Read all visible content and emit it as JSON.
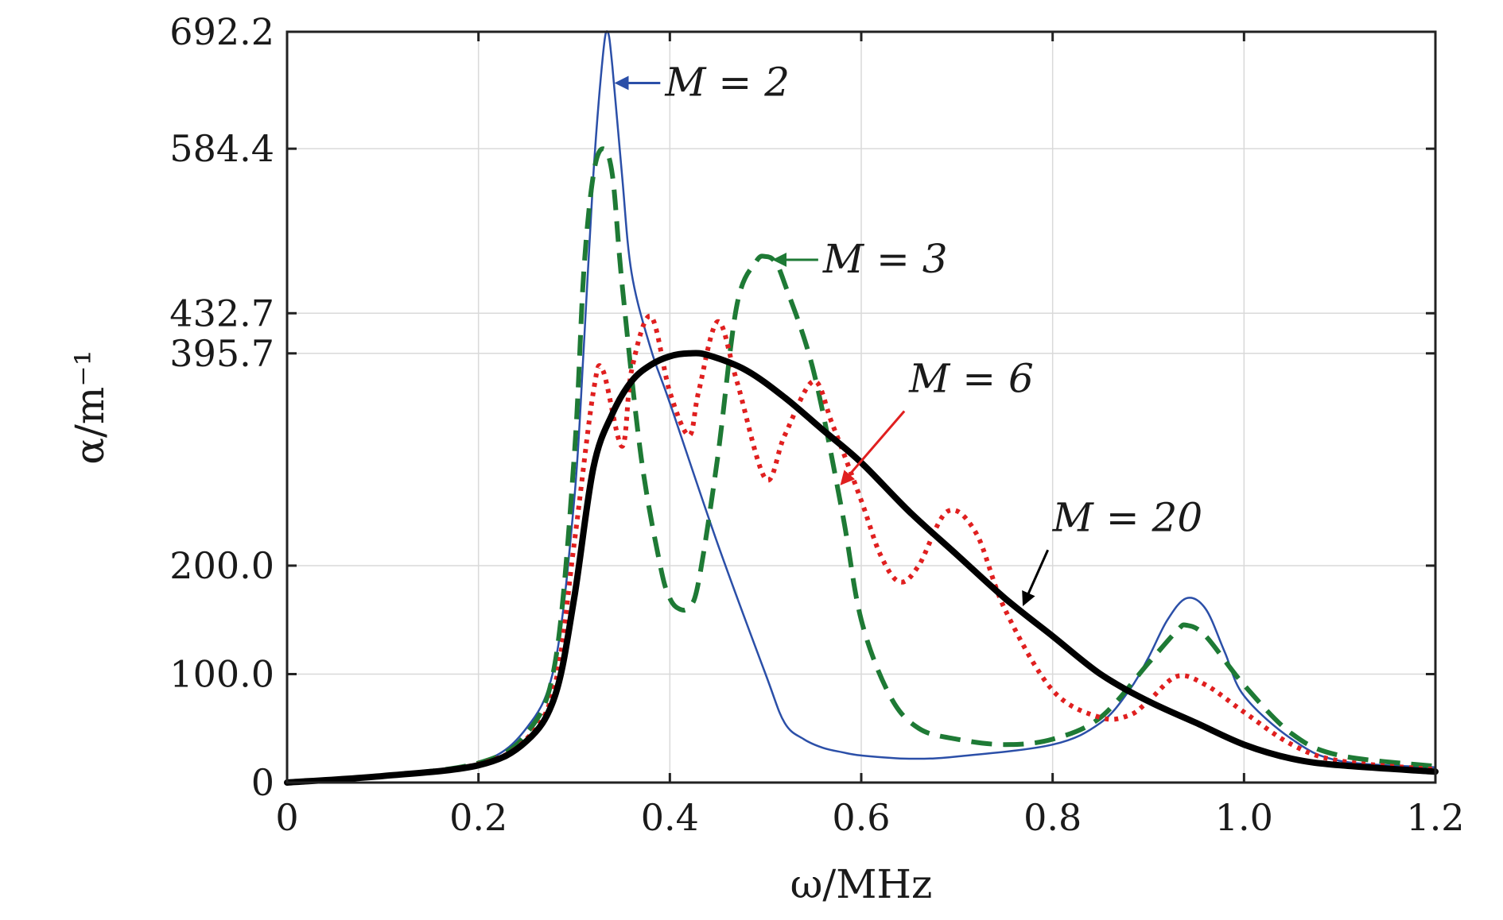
{
  "chart_data": {
    "type": "line",
    "xlabel": "ω/MHz",
    "ylabel": "α/m⁻¹",
    "xlim": [
      0,
      1.2
    ],
    "ylim": [
      0,
      692.2
    ],
    "grid": true,
    "x_ticks": [
      0,
      0.2,
      0.4,
      0.6,
      0.8,
      1.0,
      1.2
    ],
    "x_tick_labels": [
      "0",
      "0.2",
      "0.4",
      "0.6",
      "0.8",
      "1.0",
      "1.2"
    ],
    "y_ticks": [
      0,
      100,
      200,
      395.7,
      432.7,
      584.4,
      692.2
    ],
    "y_tick_labels": [
      "0",
      "100.0",
      "200.0",
      "395.7",
      "432.7",
      "584.4",
      "692.2"
    ],
    "series": [
      {
        "name": "M = 2",
        "color": "#2b4fa8",
        "style": "solid-thin",
        "x": [
          0,
          0.1,
          0.2,
          0.25,
          0.28,
          0.3,
          0.31,
          0.32,
          0.33,
          0.335,
          0.34,
          0.35,
          0.36,
          0.38,
          0.4,
          0.45,
          0.5,
          0.52,
          0.54,
          0.56,
          0.58,
          0.6,
          0.65,
          0.7,
          0.8,
          0.85,
          0.88,
          0.9,
          0.92,
          0.94,
          0.96,
          0.98,
          1.0,
          1.05,
          1.1,
          1.2
        ],
        "y": [
          0,
          6,
          18,
          50,
          110,
          260,
          400,
          560,
          670,
          692.2,
          660,
          560,
          470,
          400,
          350,
          220,
          100,
          55,
          40,
          32,
          28,
          25,
          22,
          24,
          35,
          55,
          85,
          115,
          150,
          170,
          160,
          120,
          80,
          40,
          20,
          14
        ]
      },
      {
        "name": "M = 3",
        "color": "#1e7a35",
        "style": "dashed",
        "x": [
          0,
          0.1,
          0.2,
          0.25,
          0.28,
          0.3,
          0.31,
          0.32,
          0.33,
          0.34,
          0.35,
          0.37,
          0.39,
          0.4,
          0.41,
          0.42,
          0.43,
          0.45,
          0.47,
          0.49,
          0.5,
          0.51,
          0.52,
          0.55,
          0.58,
          0.6,
          0.63,
          0.66,
          0.7,
          0.75,
          0.8,
          0.85,
          0.9,
          0.93,
          0.94,
          0.96,
          1.0,
          1.05,
          1.1,
          1.2
        ],
        "y": [
          0,
          6,
          18,
          45,
          110,
          300,
          470,
          560,
          584.4,
          560,
          460,
          300,
          200,
          170,
          160,
          162,
          185,
          300,
          440,
          480,
          485,
          480,
          460,
          380,
          250,
          150,
          80,
          50,
          40,
          35,
          40,
          60,
          110,
          140,
          145,
          135,
          90,
          45,
          25,
          15
        ]
      },
      {
        "name": "M = 6",
        "color": "#e01f1f",
        "style": "dotted",
        "x": [
          0,
          0.1,
          0.2,
          0.25,
          0.28,
          0.3,
          0.32,
          0.33,
          0.35,
          0.36,
          0.38,
          0.4,
          0.42,
          0.43,
          0.45,
          0.47,
          0.5,
          0.52,
          0.55,
          0.57,
          0.6,
          0.62,
          0.64,
          0.66,
          0.69,
          0.72,
          0.75,
          0.8,
          0.85,
          0.88,
          0.9,
          0.93,
          0.96,
          1.0,
          1.05,
          1.1,
          1.2
        ],
        "y": [
          0,
          6,
          17,
          40,
          90,
          220,
          360,
          380,
          310,
          380,
          430,
          360,
          320,
          360,
          425,
          370,
          280,
          320,
          370,
          330,
          260,
          210,
          185,
          200,
          250,
          230,
          160,
          85,
          60,
          62,
          75,
          98,
          90,
          65,
          35,
          20,
          12
        ]
      },
      {
        "name": "M = 20",
        "color": "#000000",
        "style": "solid-thick",
        "x": [
          0,
          0.1,
          0.2,
          0.25,
          0.28,
          0.3,
          0.32,
          0.34,
          0.36,
          0.38,
          0.4,
          0.42,
          0.44,
          0.48,
          0.52,
          0.56,
          0.6,
          0.65,
          0.7,
          0.75,
          0.8,
          0.85,
          0.9,
          0.95,
          1.0,
          1.05,
          1.1,
          1.2
        ],
        "y": [
          0,
          6,
          16,
          38,
          80,
          170,
          290,
          340,
          370,
          385,
          393,
          395.7,
          394,
          380,
          355,
          325,
          295,
          250,
          210,
          170,
          135,
          100,
          75,
          55,
          35,
          22,
          16,
          10
        ]
      }
    ],
    "annotations": [
      {
        "text": "M = 2",
        "color": "#2b4fa8",
        "target_x": 0.345,
        "target_y": 645,
        "label_x": 0.395,
        "label_y": 645
      },
      {
        "text": "M = 3",
        "color": "#1e7a35",
        "target_x": 0.51,
        "target_y": 482,
        "label_x": 0.56,
        "label_y": 482
      },
      {
        "text": "M = 6",
        "color": "#e01f1f",
        "target_x": 0.58,
        "target_y": 276,
        "label_x": 0.65,
        "label_y": 360
      },
      {
        "text": "M = 20",
        "color": "#000000",
        "target_x": 0.77,
        "target_y": 165,
        "label_x": 0.8,
        "label_y": 232
      }
    ]
  }
}
